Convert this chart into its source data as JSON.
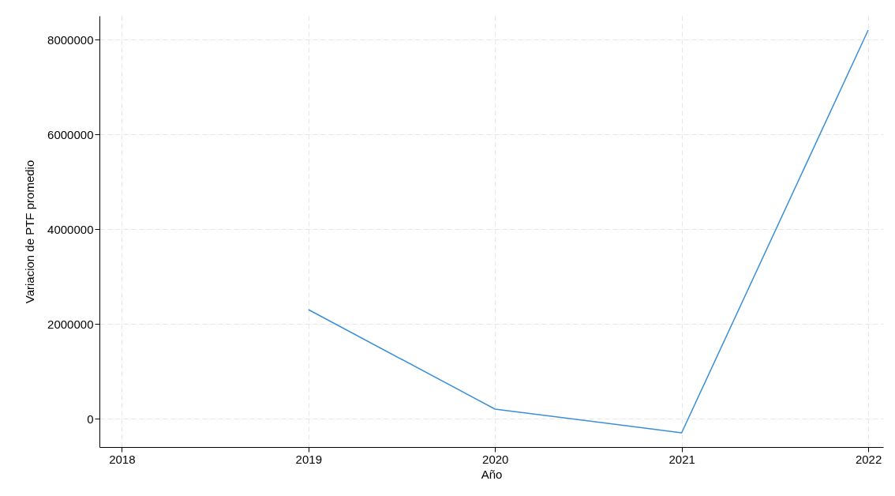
{
  "chart_data": {
    "type": "line",
    "xlabel": "Año",
    "ylabel": "Variacion de PTF promedio",
    "x": [
      2019,
      2020,
      2021,
      2022
    ],
    "series": [
      {
        "color": "#3a8fd8",
        "values": [
          2300000,
          200000,
          -300000,
          8200000
        ]
      }
    ],
    "xlim": [
      2017.88,
      2022.08
    ],
    "xticks": [
      2018,
      2019,
      2020,
      2021,
      2022
    ],
    "ylim": [
      -600000,
      8500000
    ],
    "yticks": [
      0,
      2000000,
      4000000,
      6000000,
      8000000
    ],
    "grid": true,
    "legend": false,
    "marker": "none",
    "line_style": "solid"
  }
}
